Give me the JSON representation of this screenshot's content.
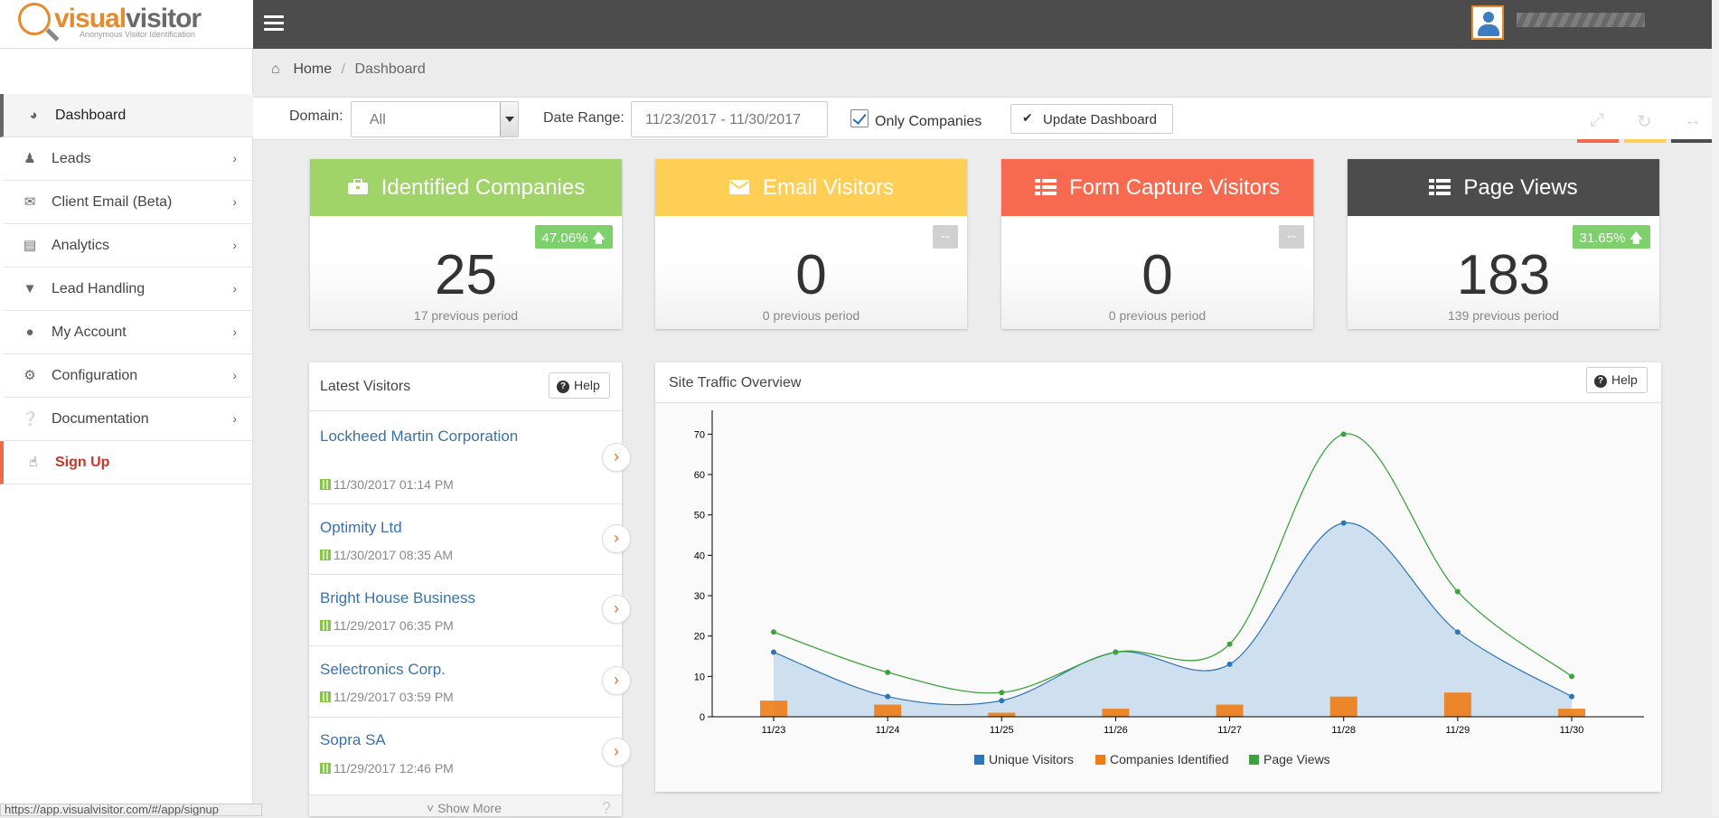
{
  "brand": {
    "name_part1": "visual",
    "name_part2": "visitor",
    "tagline": "Anonymous Visitor Identification"
  },
  "sidebar": {
    "items": [
      {
        "label": "Dashboard",
        "icon": "dashboard-icon"
      },
      {
        "label": "Leads",
        "icon": "users-icon"
      },
      {
        "label": "Client Email (Beta)",
        "icon": "envelope-icon"
      },
      {
        "label": "Analytics",
        "icon": "bar-chart-icon"
      },
      {
        "label": "Lead Handling",
        "icon": "filter-icon"
      },
      {
        "label": "My Account",
        "icon": "user-icon"
      },
      {
        "label": "Configuration",
        "icon": "gears-icon"
      },
      {
        "label": "Documentation",
        "icon": "question-circle-icon"
      },
      {
        "label": "Sign Up",
        "icon": "thumbs-up-icon"
      }
    ],
    "chevron": "›"
  },
  "breadcrumb": {
    "home": "Home",
    "separator": "/",
    "current": "Dashboard"
  },
  "filters": {
    "domain_label": "Domain:",
    "domain_value": "All",
    "date_label": "Date Range:",
    "date_value": "11/23/2017 - 11/30/2017",
    "only_companies_label": "Only Companies",
    "only_companies_checked": true,
    "update_label": "Update Dashboard"
  },
  "cards": [
    {
      "title": "Identified Companies",
      "value": "25",
      "prev": "17 previous period",
      "badge": "47.06%",
      "color": "#a0d468"
    },
    {
      "title": "Email Visitors",
      "value": "0",
      "prev": "0 previous period",
      "badge": "--",
      "color": "#ffce54"
    },
    {
      "title": "Form Capture Visitors",
      "value": "0",
      "prev": "0 previous period",
      "badge": "--",
      "color": "#f76a50"
    },
    {
      "title": "Page Views",
      "value": "183",
      "prev": "139 previous period",
      "badge": "31.65%",
      "color": "#4c4c4c"
    }
  ],
  "latest_visitors": {
    "title": "Latest Visitors",
    "help": "Help",
    "items": [
      {
        "name": "Lockheed Martin Corporation",
        "date": "11/30/2017 01:14 PM"
      },
      {
        "name": "Optimity Ltd",
        "date": "11/30/2017 08:35 AM"
      },
      {
        "name": "Bright House Business",
        "date": "11/29/2017 06:35 PM"
      },
      {
        "name": "Selectronics Corp.",
        "date": "11/29/2017 03:59 PM"
      },
      {
        "name": "Sopra SA",
        "date": "11/29/2017 12:46 PM"
      }
    ],
    "show_more": "Show More",
    "question": "?"
  },
  "status_bar_url": "https://app.visualvisitor.com/#/app/signup",
  "traffic": {
    "title": "Site Traffic Overview",
    "help": "Help"
  },
  "chart_data": {
    "type": "line",
    "categories": [
      "11/23",
      "11/24",
      "11/25",
      "11/26",
      "11/27",
      "11/28",
      "11/29",
      "11/30"
    ],
    "series": [
      {
        "name": "Unique Visitors",
        "type": "area",
        "color": "#2e75b6",
        "values": [
          16,
          5,
          4,
          16,
          13,
          48,
          21,
          5
        ]
      },
      {
        "name": "Companies Identified",
        "type": "bar",
        "color": "#ee7d14",
        "values": [
          4,
          3,
          1,
          2,
          3,
          5,
          6,
          2
        ]
      },
      {
        "name": "Page Views",
        "type": "line",
        "color": "#3ea33e",
        "values": [
          21,
          11,
          6,
          16,
          18,
          70,
          31,
          10
        ]
      }
    ],
    "ylim": [
      0,
      75
    ],
    "yticks": [
      0,
      10,
      20,
      30,
      40,
      50,
      60,
      70
    ],
    "legend": "bottom-center",
    "grid": false
  }
}
